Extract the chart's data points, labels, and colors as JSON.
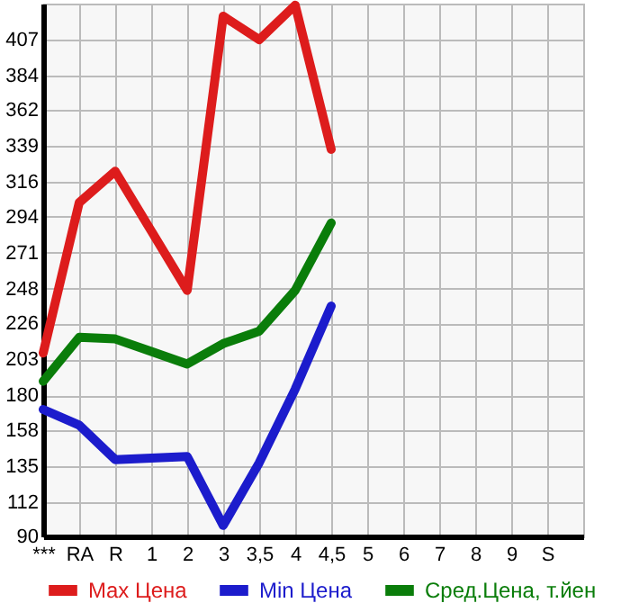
{
  "chart_data": {
    "type": "line",
    "categories": [
      "***",
      "RA",
      "R",
      "1",
      "2",
      "3",
      "3,5",
      "4",
      "4,5",
      "5",
      "6",
      "7",
      "8",
      "9",
      "S"
    ],
    "series": [
      {
        "name": "Max Цена",
        "color": "#dd1c1c",
        "values": [
          207,
          303,
          323,
          285,
          247,
          422,
          407,
          429,
          337,
          null,
          null,
          null,
          null,
          null,
          null
        ]
      },
      {
        "name": "Min Цена",
        "color": "#1c1ccc",
        "values": [
          171,
          161,
          139,
          140,
          141,
          97,
          137,
          184,
          237,
          null,
          null,
          null,
          null,
          null,
          null
        ]
      },
      {
        "name": "Сред.Цена, т.йен",
        "color": "#0a7d0a",
        "values": [
          189,
          217,
          216,
          208,
          200,
          213,
          221,
          247,
          290,
          null,
          null,
          null,
          null,
          null,
          null
        ]
      }
    ],
    "ylim": [
      90,
      430
    ],
    "yticks": [
      90,
      112,
      135,
      158,
      180,
      203,
      226,
      248,
      271,
      294,
      316,
      339,
      362,
      384,
      407
    ],
    "grid": true,
    "legend": "bottom",
    "marker": "none",
    "line_style": "solid"
  }
}
